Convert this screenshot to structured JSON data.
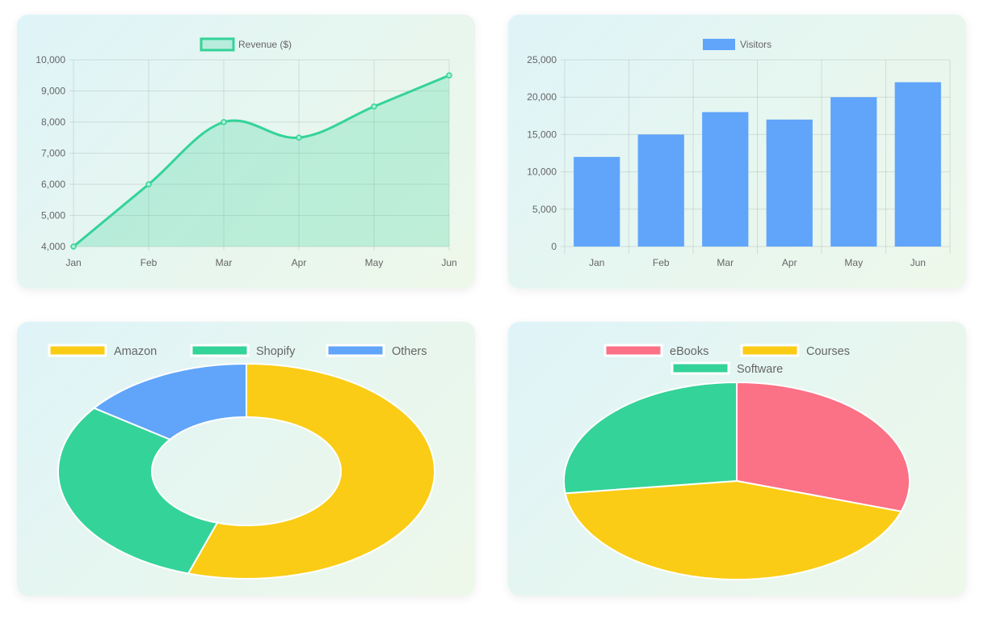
{
  "chart_data": [
    {
      "type": "line",
      "fill": true,
      "categories": [
        "Jan",
        "Feb",
        "Mar",
        "Apr",
        "May",
        "Jun"
      ],
      "series": [
        {
          "name": "Revenue ($)",
          "values": [
            4000,
            6000,
            8000,
            7500,
            8500,
            9500
          ],
          "color": "#34d399",
          "fill_color": "#34d39940"
        }
      ],
      "ylim": [
        4000,
        10000
      ],
      "yticks": [
        {
          "value": 4000,
          "label": "4,000"
        },
        {
          "value": 5000,
          "label": "5,000"
        },
        {
          "value": 6000,
          "label": "6,000"
        },
        {
          "value": 7000,
          "label": "7,000"
        },
        {
          "value": 8000,
          "label": "8,000"
        },
        {
          "value": 9000,
          "label": "9,000"
        },
        {
          "value": 10000,
          "label": "10,000"
        }
      ],
      "grid": true,
      "legend": "top"
    },
    {
      "type": "bar",
      "categories": [
        "Jan",
        "Feb",
        "Mar",
        "Apr",
        "May",
        "Jun"
      ],
      "series": [
        {
          "name": "Visitors",
          "values": [
            12000,
            15000,
            18000,
            17000,
            20000,
            22000
          ],
          "color": "#60a5fa"
        }
      ],
      "ylim": [
        0,
        25000
      ],
      "yticks": [
        {
          "value": 0,
          "label": "0"
        },
        {
          "value": 5000,
          "label": "5,000"
        },
        {
          "value": 10000,
          "label": "10,000"
        },
        {
          "value": 15000,
          "label": "15,000"
        },
        {
          "value": 20000,
          "label": "20,000"
        },
        {
          "value": 25000,
          "label": "25,000"
        }
      ],
      "grid": true,
      "legend": "top"
    },
    {
      "type": "pie",
      "variant": "doughnut",
      "labels": [
        "Amazon",
        "Shopify",
        "Others"
      ],
      "values": [
        55,
        30,
        15
      ],
      "colors": [
        "#facc15",
        "#34d399",
        "#60a5fa"
      ],
      "legend": "top"
    },
    {
      "type": "pie",
      "labels": [
        "eBooks",
        "Courses",
        "Software"
      ],
      "values": [
        30,
        43,
        27
      ],
      "colors": [
        "#fb7185",
        "#facc15",
        "#34d399"
      ],
      "legend": "top"
    }
  ]
}
